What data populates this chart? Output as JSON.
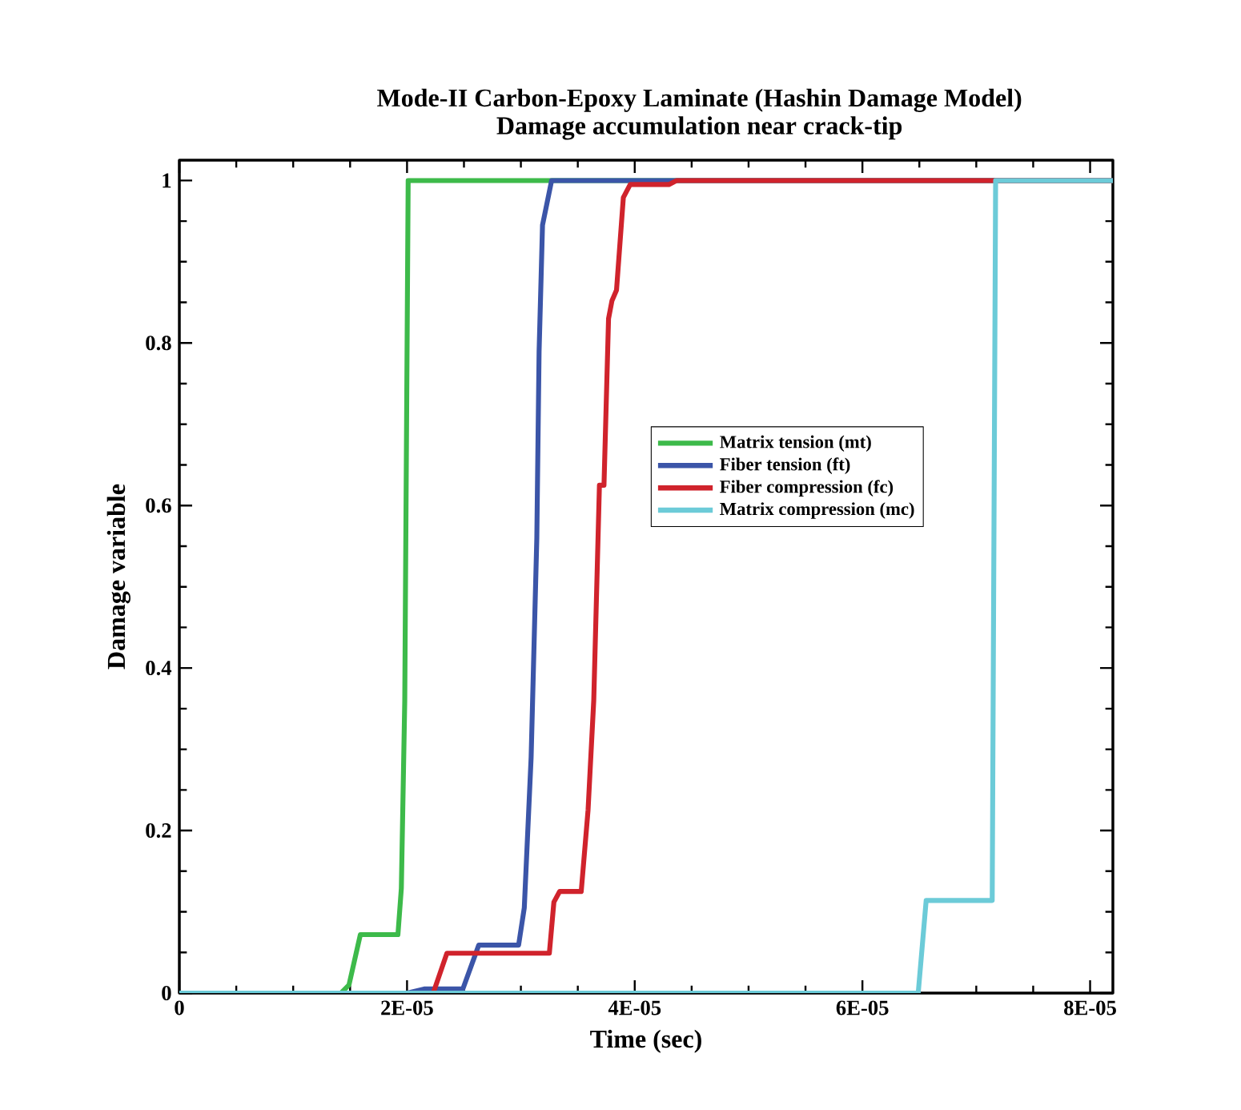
{
  "chart_data": {
    "type": "line",
    "title": "Mode-II Carbon-Epoxy Laminate (Hashin Damage Model)",
    "subtitle": "Damage accumulation near crack-tip",
    "xlabel": "Time (sec)",
    "ylabel": "Damage variable",
    "xlim": [
      0,
      8.2e-05
    ],
    "ylim": [
      0,
      1.025
    ],
    "xticks": [
      0,
      {
        "value": 2e-05,
        "label": "2E-05"
      },
      {
        "value": 4e-05,
        "label": "4E-05"
      },
      {
        "value": 6e-05,
        "label": "6E-05"
      },
      {
        "value": 8e-05,
        "label": "8E-05"
      }
    ],
    "yticks": [
      0,
      0.2,
      0.4,
      0.6,
      0.8,
      1
    ],
    "grid": false,
    "legend": "center",
    "marker": "none",
    "line_style": "solid",
    "series": [
      {
        "name": "Matrix tension (mt)",
        "color": "#3dba4a",
        "x": [
          0,
          1.42e-05,
          1.49e-05,
          1.59e-05,
          1.92e-05,
          1.95e-05,
          1.98e-05,
          2.01e-05,
          8.2e-05
        ],
        "values": [
          0,
          0,
          0.01,
          0.072,
          0.072,
          0.129,
          0.36,
          1,
          1
        ]
      },
      {
        "name": "Fiber tension (ft)",
        "color": "#3b55a8",
        "x": [
          0,
          2e-05,
          2.15e-05,
          2.49e-05,
          2.63e-05,
          2.98e-05,
          3.03e-05,
          3.09e-05,
          3.14e-05,
          3.16e-05,
          3.19e-05,
          3.27e-05,
          8.2e-05
        ],
        "values": [
          0,
          0,
          0.005,
          0.005,
          0.059,
          0.059,
          0.105,
          0.29,
          0.56,
          0.79,
          0.945,
          1,
          1
        ]
      },
      {
        "name": "Fiber compression (fc)",
        "color": "#d0232c",
        "x": [
          0,
          2.23e-05,
          2.35e-05,
          3.25e-05,
          3.29e-05,
          3.34e-05,
          3.53e-05,
          3.59e-05,
          3.64e-05,
          3.69e-05,
          3.73e-05,
          3.77e-05,
          3.8e-05,
          3.84e-05,
          3.9e-05,
          3.96e-05,
          4.3e-05,
          4.37e-05,
          8.2e-05
        ],
        "values": [
          0,
          0,
          0.049,
          0.049,
          0.112,
          0.125,
          0.125,
          0.225,
          0.36,
          0.625,
          0.625,
          0.83,
          0.852,
          0.865,
          0.979,
          0.995,
          0.995,
          1,
          1
        ]
      },
      {
        "name": "Matrix compression (mc)",
        "color": "#6ccbd8",
        "x": [
          0,
          6.49e-05,
          6.56e-05,
          7.14e-05,
          7.17e-05,
          8.2e-05
        ],
        "values": [
          0,
          0,
          0.114,
          0.114,
          1,
          1
        ]
      }
    ]
  }
}
